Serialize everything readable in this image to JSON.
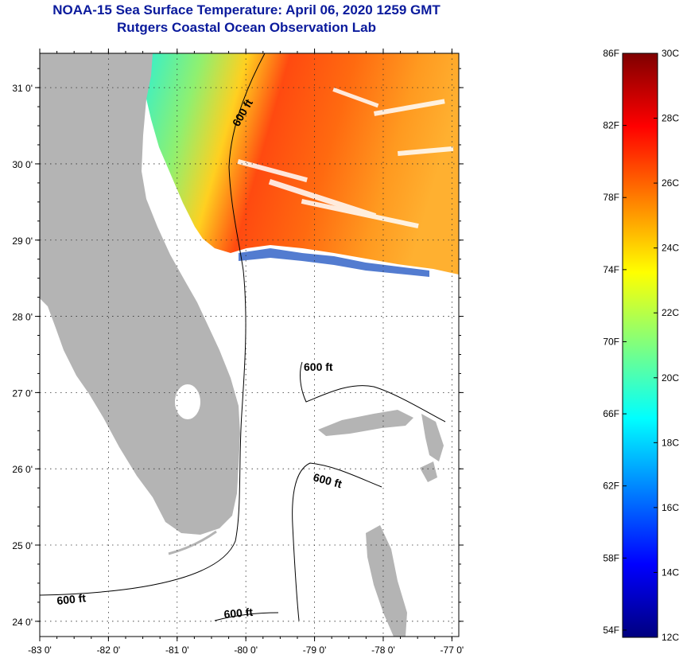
{
  "titles": {
    "line1": "NOAA-15 Sea Surface Temperature:  April 06, 2020 1259 GMT",
    "line2": "Rutgers Coastal Ocean Observation Lab"
  },
  "map": {
    "lon_range": [
      -83.0,
      -76.9
    ],
    "lat_range": [
      23.8,
      31.45
    ],
    "lat_ticks": [
      {
        "value": 31,
        "label": "31 0'"
      },
      {
        "value": 30,
        "label": "30 0'"
      },
      {
        "value": 29,
        "label": "29 0'"
      },
      {
        "value": 28,
        "label": "28 0'"
      },
      {
        "value": 27,
        "label": "27 0'"
      },
      {
        "value": 26,
        "label": "26 0'"
      },
      {
        "value": 25,
        "label": "25 0'"
      },
      {
        "value": 24,
        "label": "24 0'"
      }
    ],
    "lon_ticks": [
      {
        "value": -83,
        "label": "-83 0'"
      },
      {
        "value": -82,
        "label": "-82 0'"
      },
      {
        "value": -81,
        "label": "-81 0'"
      },
      {
        "value": -80,
        "label": "-80 0'"
      },
      {
        "value": -79,
        "label": "-79 0'"
      },
      {
        "value": -78,
        "label": "-78 0'"
      },
      {
        "value": -77,
        "label": "-77 0'"
      }
    ],
    "grid": "dotted",
    "isobath_label": "600 ft",
    "land_color": "#b4b4b4",
    "cloud_color": "#ffffff"
  },
  "colorbar": {
    "min_c": 12,
    "max_c": 30,
    "celsius_labels": [
      {
        "value": 30,
        "label": "30C"
      },
      {
        "value": 28,
        "label": "28C"
      },
      {
        "value": 26,
        "label": "26C"
      },
      {
        "value": 24,
        "label": "24C"
      },
      {
        "value": 22,
        "label": "22C"
      },
      {
        "value": 20,
        "label": "20C"
      },
      {
        "value": 18,
        "label": "18C"
      },
      {
        "value": 16,
        "label": "16C"
      },
      {
        "value": 14,
        "label": "14C"
      },
      {
        "value": 12,
        "label": "12C"
      }
    ],
    "fahrenheit_labels": [
      {
        "value_f": 86,
        "label": "86F"
      },
      {
        "value_f": 82,
        "label": "82F"
      },
      {
        "value_f": 78,
        "label": "78F"
      },
      {
        "value_f": 74,
        "label": "74F"
      },
      {
        "value_f": 70,
        "label": "70F"
      },
      {
        "value_f": 66,
        "label": "66F"
      },
      {
        "value_f": 62,
        "label": "62F"
      },
      {
        "value_f": 58,
        "label": "58F"
      },
      {
        "value_f": 54,
        "label": "54F"
      }
    ],
    "colors": [
      "#00007f",
      "#0000ff",
      "#007fff",
      "#00ffff",
      "#7fff7f",
      "#ffff00",
      "#ff7f00",
      "#ff0000",
      "#7f0000"
    ]
  }
}
